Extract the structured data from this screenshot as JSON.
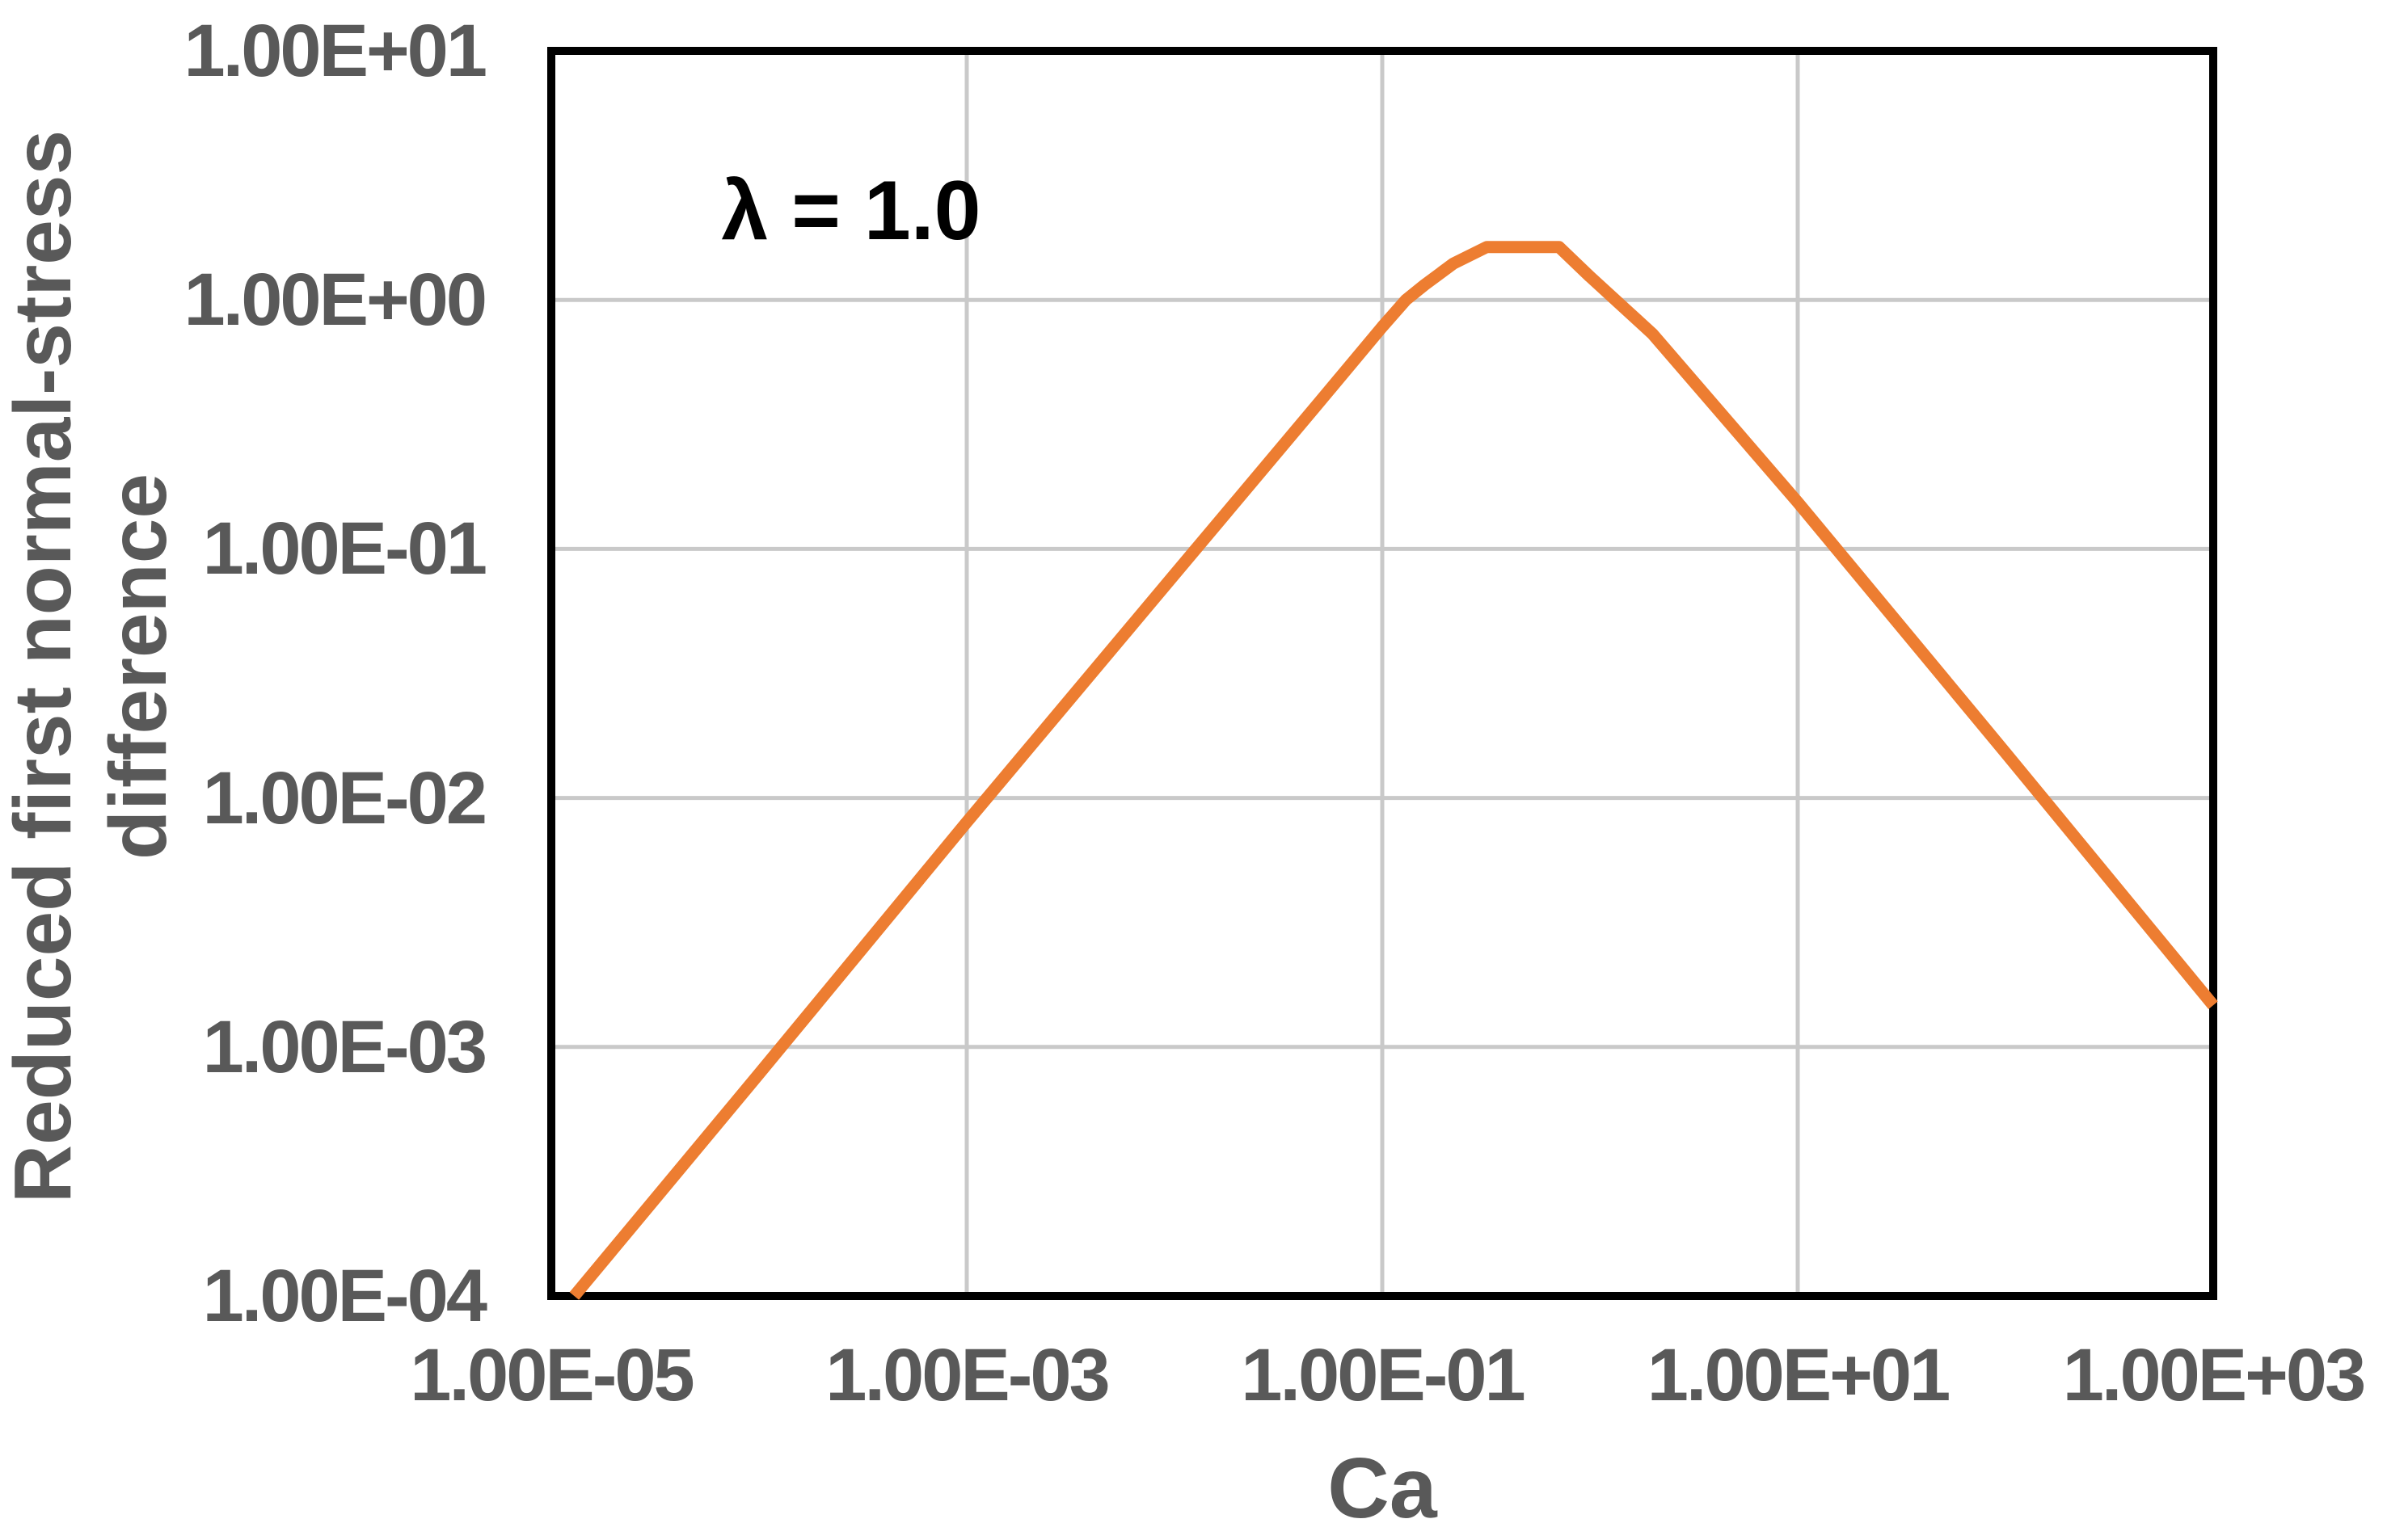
{
  "chart_data": {
    "type": "line",
    "title": "",
    "xlabel": "Ca",
    "ylabel_lines": [
      "Reduced first normal-stress",
      "difference"
    ],
    "annotation": "λ = 1.0",
    "x_scale": "log",
    "y_scale": "log",
    "xlim": [
      1e-05,
      1000.0
    ],
    "ylim": [
      0.0001,
      10.0
    ],
    "x_tick_labels": [
      "1.00E-05",
      "1.00E-03",
      "1.00E-01",
      "1.00E+01",
      "1.00E+03"
    ],
    "x_tick_values": [
      1e-05,
      0.001,
      0.1,
      10.0,
      1000.0
    ],
    "y_tick_labels": [
      "1.00E+01",
      "1.00E+00",
      "1.00E-01",
      "1.00E-02",
      "1.00E-03",
      "1.00E-04"
    ],
    "y_tick_values": [
      10.0,
      1.0,
      0.1,
      0.01,
      0.001,
      0.0001
    ],
    "x_gridline_values": [
      0.001,
      0.1,
      10.0
    ],
    "y_gridline_values": [
      1.0,
      0.1,
      0.01,
      0.001
    ],
    "grid_on": true,
    "legend": "none",
    "colors": {
      "series": "#ED7D31",
      "grid": "#C9C9C9",
      "border": "#000000",
      "text": "#595959",
      "annotation_text": "#000000"
    },
    "series": [
      {
        "name": "λ = 1.0",
        "color": "#ED7D31",
        "points": [
          [
            1.29e-05,
            0.0001
          ],
          [
            0.0001,
            0.00078
          ],
          [
            0.001,
            0.008
          ],
          [
            0.01,
            0.079
          ],
          [
            0.05,
            0.39
          ],
          [
            0.1,
            0.78
          ],
          [
            0.13,
            1.0
          ],
          [
            0.16,
            1.15
          ],
          [
            0.22,
            1.4
          ],
          [
            0.318,
            1.63
          ],
          [
            0.71,
            1.63
          ],
          [
            1.0,
            1.24
          ],
          [
            2.0,
            0.73
          ],
          [
            10,
            0.154
          ],
          [
            100,
            0.0152
          ],
          [
            1000,
            0.00147
          ]
        ]
      }
    ]
  }
}
